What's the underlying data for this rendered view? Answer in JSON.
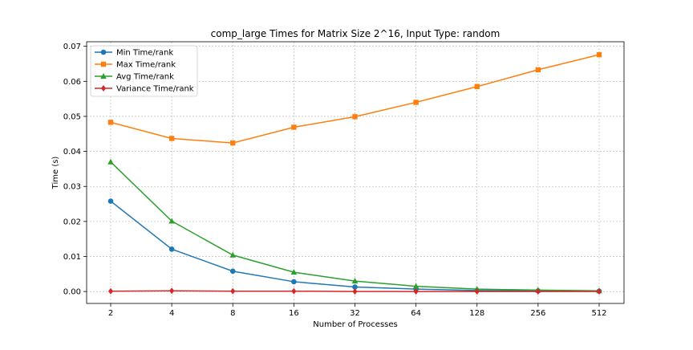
{
  "chart_data": {
    "type": "line",
    "title": "comp_large Times for Matrix Size 2^16, Input Type: random",
    "xlabel": "Number of Processes",
    "ylabel": "Time (s)",
    "categories": [
      "2",
      "4",
      "8",
      "16",
      "32",
      "64",
      "128",
      "256",
      "512"
    ],
    "y_ticks": [
      "0.00",
      "0.01",
      "0.02",
      "0.03",
      "0.04",
      "0.05",
      "0.06",
      "0.07"
    ],
    "ylim": [
      -0.0034,
      0.0713
    ],
    "grid": true,
    "grid_style": "dashed",
    "legend_position": "top-left",
    "series": [
      {
        "name": "Min Time/rank",
        "color": "#1f77b4",
        "marker": "circle",
        "values": [
          0.0258,
          0.0121,
          0.0058,
          0.0028,
          0.0013,
          0.0007,
          0.0003,
          0.0002,
          0.0001
        ]
      },
      {
        "name": "Max Time/rank",
        "color": "#ff7f0e",
        "marker": "square",
        "values": [
          0.0483,
          0.0437,
          0.0424,
          0.0469,
          0.0499,
          0.054,
          0.0585,
          0.0633,
          0.0676
        ]
      },
      {
        "name": "Avg Time/rank",
        "color": "#2ca02c",
        "marker": "triangle",
        "values": [
          0.037,
          0.0201,
          0.0104,
          0.0055,
          0.003,
          0.0015,
          0.0007,
          0.0004,
          0.0002
        ]
      },
      {
        "name": "Variance Time/rank",
        "color": "#d62728",
        "marker": "diamond",
        "values": [
          0.0001,
          0.0002,
          0.0001,
          0.0001,
          0.0,
          0.0,
          0.0,
          0.0,
          0.0
        ]
      }
    ]
  }
}
